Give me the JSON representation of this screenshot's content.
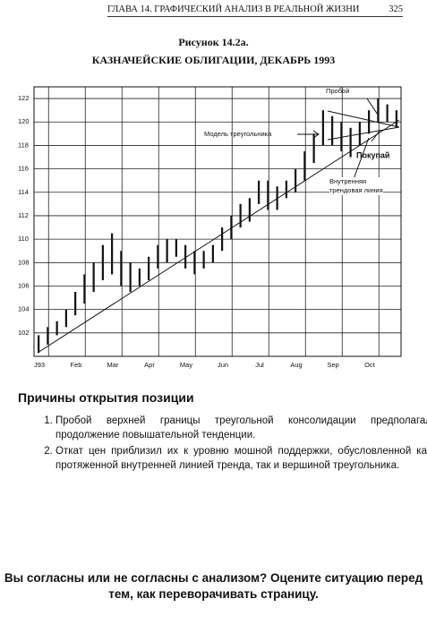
{
  "header": {
    "chapter": "ГЛАВА 14. ГРАФИЧЕСКИЙ АНАЛИЗ В РЕАЛЬНОЙ ЖИЗНИ",
    "page": "325"
  },
  "figure_label": "Рисунок 14.2а.",
  "chart_data": {
    "type": "range",
    "title": "КАЗНАЧЕЙСКИЕ ОБЛИГАЦИИ, ДЕКАБРЬ 1993",
    "categories": [
      "J93",
      null,
      null,
      null,
      "Feb",
      null,
      null,
      null,
      "Mar",
      null,
      null,
      null,
      "Apr",
      null,
      null,
      null,
      "May",
      null,
      null,
      null,
      "Jun",
      null,
      null,
      null,
      "Jul",
      null,
      null,
      null,
      "Aug",
      null,
      null,
      null,
      "Sep",
      null,
      null,
      null,
      "Oct",
      null,
      null,
      null
    ],
    "low": [
      100.3,
      101,
      101.8,
      102.5,
      103.5,
      104.5,
      105.5,
      106.5,
      107,
      106,
      105.5,
      106,
      106.5,
      107.5,
      108,
      108.5,
      107.5,
      107,
      107.5,
      108,
      109,
      110,
      111,
      111.5,
      113,
      112.5,
      112.5,
      113.5,
      114,
      115,
      116.5,
      118,
      118,
      117.5,
      117,
      118,
      119,
      120,
      120,
      119.5
    ],
    "high": [
      101.8,
      102.5,
      103,
      104,
      105.5,
      107,
      108,
      109.5,
      110.5,
      109,
      108,
      107.5,
      108.5,
      109.5,
      110,
      110,
      109.5,
      109,
      109,
      109.5,
      111,
      112,
      113,
      113.5,
      115,
      115,
      114.5,
      115,
      116,
      117.5,
      119,
      121,
      120.5,
      120,
      119.5,
      120,
      121,
      122,
      121.5,
      121
    ],
    "color": "#111111",
    "ylim": [
      100,
      123
    ],
    "yticks": [
      102,
      104,
      106,
      108,
      110,
      112,
      114,
      116,
      118,
      120,
      122
    ],
    "grid": true,
    "annotations": [
      "Пробой",
      "Модель треугольника",
      "Покупай",
      "Внутренняя трендовая линия"
    ]
  },
  "section": {
    "title": "Причины открытия позиции",
    "items": [
      "Пробой верхней границы треугольной консолидации предполагал продолжение повышательной тенденции.",
      "Откат цен приблизил их к уровню мошной поддержки, обусловленной как протяженной внутренней линией тренда, так и вершиной треугольника."
    ]
  },
  "question": "Вы согласны или не согласны с анализом? Оцените ситуацию перед тем, как переворачивать страницу."
}
